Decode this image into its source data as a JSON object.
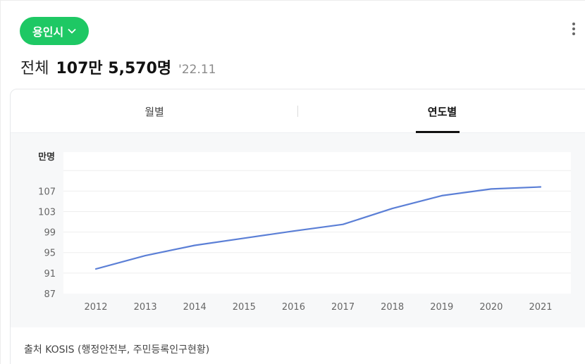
{
  "header": {
    "region_label": "용인시",
    "headline_label": "전체",
    "headline_value": "107만 5,570명",
    "headline_date": "'22.11"
  },
  "tabs": [
    {
      "label": "월별",
      "active": false
    },
    {
      "label": "연도별",
      "active": true
    }
  ],
  "source": "출처 KOSIS (행정안전부, 주민등록인구현황)",
  "colors": {
    "accent": "#1ec864",
    "line": "#5b7fd6",
    "plot_bg": "#ffffff",
    "area_bg": "#f7f8f9"
  },
  "icons": {
    "region_dropdown": "chevron-down-icon",
    "menu": "more-vertical-icon"
  },
  "chart_data": {
    "type": "line",
    "ylabel": "만명",
    "categories": [
      "2012",
      "2013",
      "2014",
      "2015",
      "2016",
      "2017",
      "2018",
      "2019",
      "2020",
      "2021"
    ],
    "series": [
      {
        "values": [
          91.8,
          94.4,
          96.4,
          97.8,
          99.2,
          100.5,
          103.6,
          106.1,
          107.4,
          107.8
        ]
      }
    ],
    "yticks": [
      87,
      91,
      95,
      99,
      103,
      107
    ],
    "ylim": [
      87,
      114.6
    ],
    "grid": true
  }
}
